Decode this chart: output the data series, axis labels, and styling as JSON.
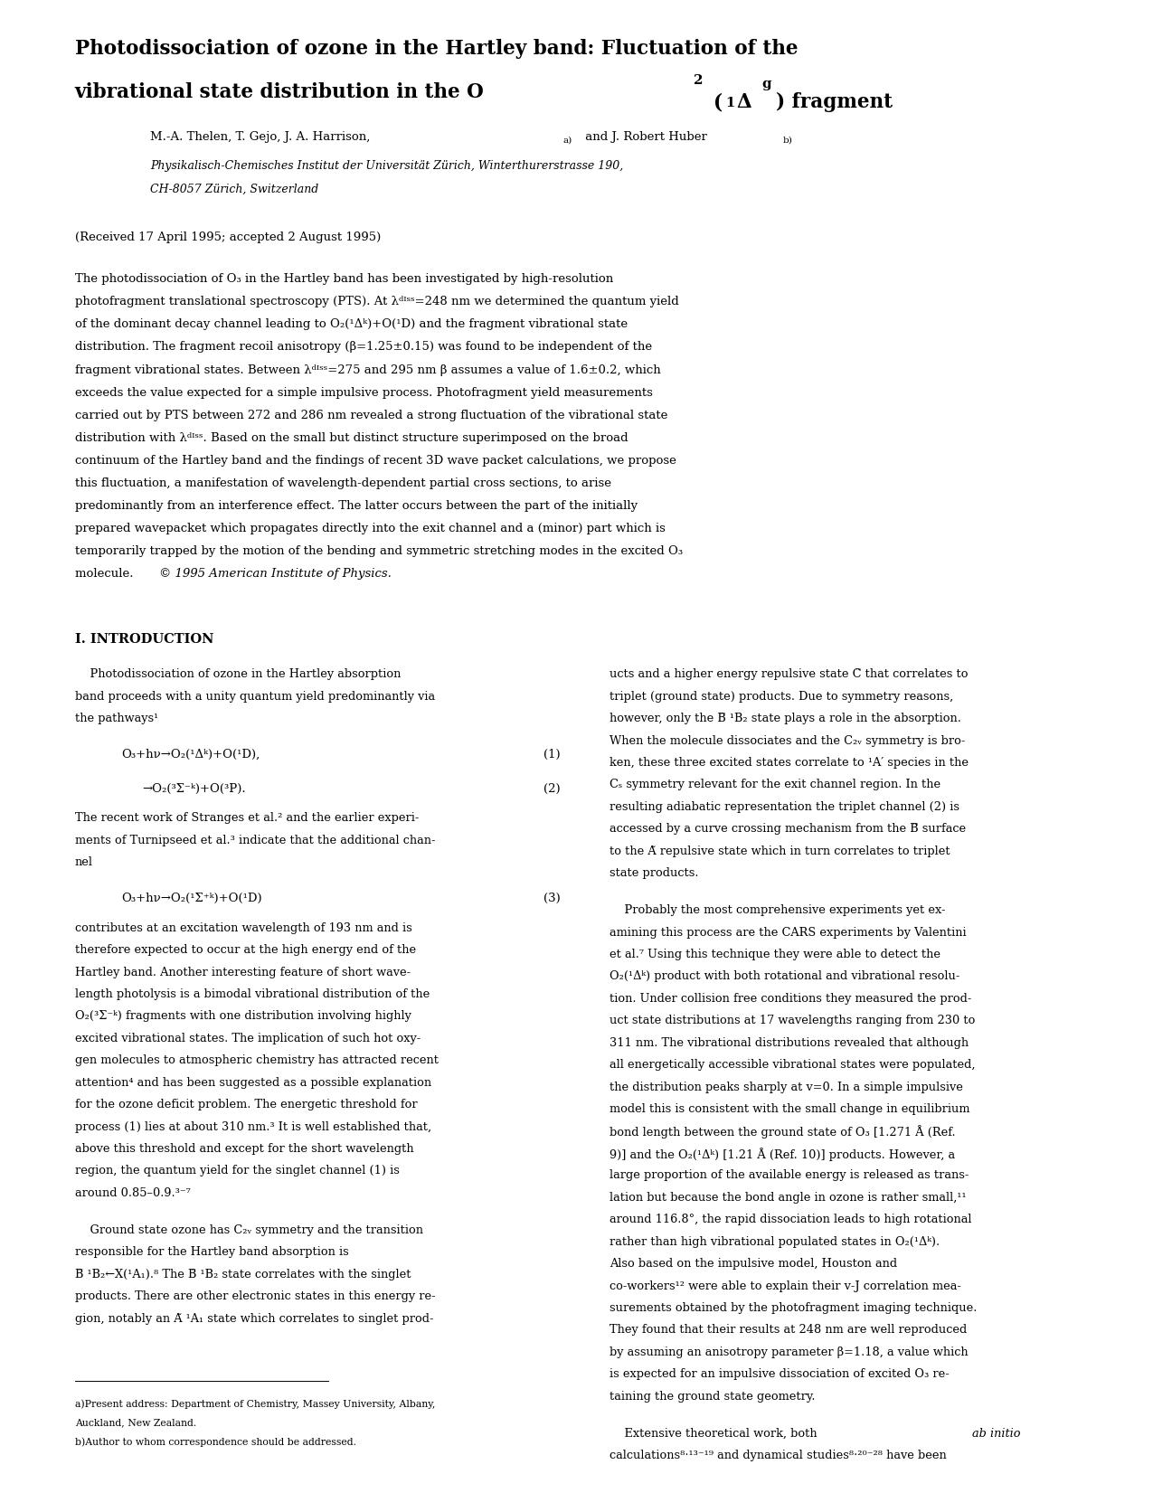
{
  "title_line1": "Photodissociation of ozone in the Hartley band: Fluctuation of the",
  "title_line2_plain": "vibrational state distribution in the O",
  "authors": "M.-A. Thelen, T. Gejo, J. A. Harrison,",
  "authors2": " and J. Robert Huber",
  "affil1": "Physikalisch-Chemisches Institut der Universität Zürich, Winterthurerstrasse 190,",
  "affil2": "CH-8057 Zürich, Switzerland",
  "received": "(Received 17 April 1995; accepted 2 August 1995)",
  "footnote_a": "a)Present address: Department of Chemistry, Massey University, Albany, Auckland, New Zealand.",
  "footnote_b": "b)Author to whom correspondence should be addressed.",
  "bg_color": "#ffffff",
  "text_color": "#000000"
}
